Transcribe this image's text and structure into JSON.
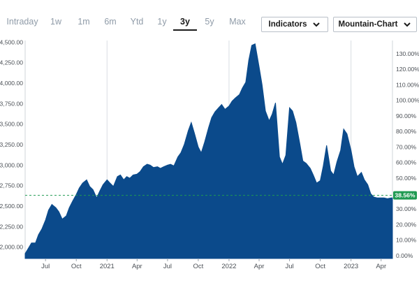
{
  "toolbar": {
    "tabs": [
      {
        "label": "Intraday",
        "active": false
      },
      {
        "label": "1w",
        "active": false
      },
      {
        "label": "1m",
        "active": false
      },
      {
        "label": "6m",
        "active": false
      },
      {
        "label": "Ytd",
        "active": false
      },
      {
        "label": "1y",
        "active": false
      },
      {
        "label": "3y",
        "active": true
      },
      {
        "label": "5y",
        "active": false
      },
      {
        "label": "Max",
        "active": false
      }
    ],
    "indicators_label": "Indicators",
    "chart_type_label": "Mountain-Chart"
  },
  "chart_data": {
    "type": "area",
    "color": "#0b4a8b",
    "reference_line_color": "#1f9a52",
    "badge_color": "#1f9a52",
    "change_label": "38.56%",
    "reference_value": 2630,
    "x_tick_labels": [
      "Jul",
      "Oct",
      "2021",
      "Apr",
      "Jul",
      "Oct",
      "2022",
      "Apr",
      "Jul",
      "Oct",
      "2023",
      "Apr"
    ],
    "left_axis_labels": [
      "4,500.00",
      "4,250.00",
      "4,000.00",
      "3,750.00",
      "3,500.00",
      "3,250.00",
      "3,000.00",
      "2,750.00",
      "2,500.00",
      "2,250.00",
      "2,000.00"
    ],
    "right_axis_labels": [
      "130.00%",
      "120.00%",
      "110.00%",
      "100.00%",
      "90.00%",
      "80.00%",
      "70.00%",
      "60.00%",
      "50.00%",
      "40.00%",
      "30.00%",
      "20.00%",
      "10.00%",
      "0.00%"
    ],
    "ylim": [
      1860,
      4520
    ],
    "grid": "vertical-lines-at-year-start",
    "x": [
      "2020-05-01",
      "2020-05-10",
      "2020-05-20",
      "2020-06-01",
      "2020-06-10",
      "2020-06-20",
      "2020-07-01",
      "2020-07-10",
      "2020-07-20",
      "2020-08-01",
      "2020-08-10",
      "2020-08-20",
      "2020-09-01",
      "2020-09-10",
      "2020-09-20",
      "2020-10-01",
      "2020-10-10",
      "2020-10-20",
      "2020-11-01",
      "2020-11-10",
      "2020-11-20",
      "2020-12-01",
      "2020-12-10",
      "2020-12-20",
      "2021-01-01",
      "2021-01-10",
      "2021-01-20",
      "2021-02-01",
      "2021-02-10",
      "2021-02-20",
      "2021-03-01",
      "2021-03-10",
      "2021-03-20",
      "2021-04-01",
      "2021-04-10",
      "2021-04-20",
      "2021-05-01",
      "2021-05-10",
      "2021-05-20",
      "2021-06-01",
      "2021-06-10",
      "2021-06-20",
      "2021-07-01",
      "2021-07-10",
      "2021-07-20",
      "2021-08-01",
      "2021-08-10",
      "2021-08-20",
      "2021-09-01",
      "2021-09-10",
      "2021-09-20",
      "2021-10-01",
      "2021-10-10",
      "2021-10-20",
      "2021-11-01",
      "2021-11-10",
      "2021-11-20",
      "2021-12-01",
      "2021-12-10",
      "2021-12-20",
      "2022-01-01",
      "2022-01-10",
      "2022-01-20",
      "2022-02-01",
      "2022-02-10",
      "2022-02-20",
      "2022-03-01",
      "2022-03-10",
      "2022-03-20",
      "2022-04-01",
      "2022-04-10",
      "2022-04-20",
      "2022-05-01",
      "2022-05-10",
      "2022-05-20",
      "2022-06-01",
      "2022-06-10",
      "2022-06-20",
      "2022-07-01",
      "2022-07-10",
      "2022-07-20",
      "2022-08-01",
      "2022-08-10",
      "2022-08-20",
      "2022-09-01",
      "2022-09-10",
      "2022-09-20",
      "2022-10-01",
      "2022-10-10",
      "2022-10-20",
      "2022-11-01",
      "2022-11-10",
      "2022-11-20",
      "2022-12-01",
      "2022-12-10",
      "2022-12-20",
      "2023-01-01",
      "2023-01-10",
      "2023-01-20",
      "2023-02-01",
      "2023-02-10",
      "2023-02-20",
      "2023-03-01",
      "2023-03-10",
      "2023-03-20",
      "2023-04-01",
      "2023-04-10",
      "2023-04-20",
      "2023-05-01",
      "2023-05-05"
    ],
    "values": [
      1920,
      1980,
      2050,
      2050,
      2150,
      2220,
      2330,
      2450,
      2520,
      2480,
      2430,
      2340,
      2380,
      2480,
      2560,
      2640,
      2720,
      2780,
      2820,
      2740,
      2700,
      2600,
      2680,
      2760,
      2820,
      2780,
      2740,
      2860,
      2880,
      2820,
      2860,
      2840,
      2880,
      2890,
      2920,
      2980,
      3010,
      3000,
      2970,
      2980,
      2960,
      2980,
      3000,
      3010,
      2990,
      3100,
      3150,
      3250,
      3420,
      3520,
      3380,
      3220,
      3150,
      3280,
      3460,
      3580,
      3650,
      3700,
      3740,
      3680,
      3720,
      3780,
      3820,
      3860,
      3940,
      4010,
      4280,
      4460,
      4480,
      4200,
      3980,
      3660,
      3540,
      3620,
      3760,
      3100,
      3010,
      3120,
      3700,
      3660,
      3520,
      3260,
      3050,
      3020,
      2960,
      2880,
      2780,
      2810,
      2990,
      3240,
      2930,
      2880,
      3040,
      3180,
      3440,
      3380,
      3180,
      2980,
      2860,
      2910,
      2820,
      2760,
      2650,
      2610,
      2600,
      2600,
      2600,
      2590,
      2600,
      2600
    ]
  }
}
